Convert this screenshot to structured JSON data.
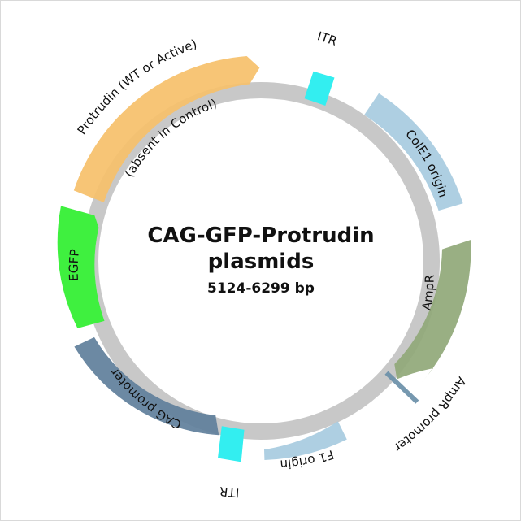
{
  "title_line1": "CAG-GFP-Protrudin",
  "title_line2": "plasmids",
  "size": "5124-6299 bp",
  "features": [
    {
      "id": "itr1",
      "label": "ITR",
      "color": "#33eef0"
    },
    {
      "id": "cole1",
      "label": "ColE1 origin",
      "color": "#a7cbe0"
    },
    {
      "id": "ampr",
      "label": "AmpR",
      "color": "#90a878"
    },
    {
      "id": "ampr_promoter",
      "label": "AmpR promoter",
      "color": "#6a8fa8"
    },
    {
      "id": "f1",
      "label": "F1 origin",
      "color": "#a7cbe0"
    },
    {
      "id": "itr2",
      "label": "ITR",
      "color": "#33eef0"
    },
    {
      "id": "cag",
      "label": "CAG promoter",
      "color": "#5f7f9b"
    },
    {
      "id": "egfp",
      "label": "EGFP",
      "color": "#3ff03f"
    },
    {
      "id": "protrudin",
      "label": "Protrudin (WT or Active)",
      "color": "#f6c06a"
    },
    {
      "id": "protrudin_note",
      "label": "(absent in Control)"
    }
  ],
  "backbone_color": "#c8c8c8"
}
